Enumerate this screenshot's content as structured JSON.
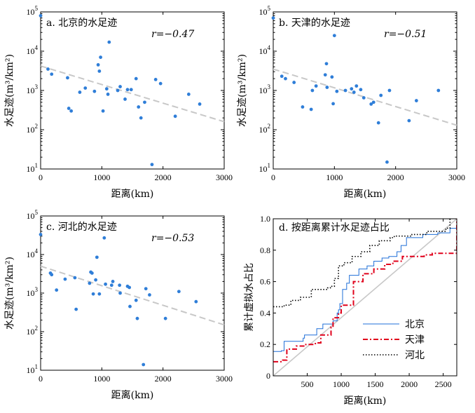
{
  "chart_data": [
    {
      "type": "scatter",
      "panel": "a. 北京的水足迹",
      "r_text": "r=−0.47",
      "xlabel": "距离(km)",
      "ylabel": "水足迹(m³/km²)",
      "xlim": [
        0,
        3000
      ],
      "ylim": [
        10,
        100000
      ],
      "yscale": "log",
      "xticks": [
        "0",
        "1000",
        "2000",
        "3000"
      ],
      "yticks": [
        "10",
        "100",
        "1000",
        "10000",
        "100000"
      ],
      "trend": {
        "x": [
          0,
          3000
        ],
        "y": [
          4200,
          160
        ]
      },
      "points": [
        {
          "x": 0,
          "y": 80000
        },
        {
          "x": 120,
          "y": 3500
        },
        {
          "x": 180,
          "y": 2600
        },
        {
          "x": 440,
          "y": 2100
        },
        {
          "x": 460,
          "y": 350
        },
        {
          "x": 500,
          "y": 300
        },
        {
          "x": 640,
          "y": 900
        },
        {
          "x": 730,
          "y": 1150
        },
        {
          "x": 880,
          "y": 950
        },
        {
          "x": 940,
          "y": 4500
        },
        {
          "x": 960,
          "y": 3100
        },
        {
          "x": 980,
          "y": 7000
        },
        {
          "x": 1020,
          "y": 300
        },
        {
          "x": 1080,
          "y": 1100
        },
        {
          "x": 1100,
          "y": 800
        },
        {
          "x": 1120,
          "y": 17000
        },
        {
          "x": 1260,
          "y": 1000
        },
        {
          "x": 1300,
          "y": 1250
        },
        {
          "x": 1380,
          "y": 600
        },
        {
          "x": 1420,
          "y": 1050
        },
        {
          "x": 1480,
          "y": 1050
        },
        {
          "x": 1560,
          "y": 2000
        },
        {
          "x": 1600,
          "y": 380
        },
        {
          "x": 1640,
          "y": 200
        },
        {
          "x": 1700,
          "y": 500
        },
        {
          "x": 1820,
          "y": 13
        },
        {
          "x": 1880,
          "y": 1900
        },
        {
          "x": 1960,
          "y": 1500
        },
        {
          "x": 2200,
          "y": 220
        },
        {
          "x": 2420,
          "y": 800
        },
        {
          "x": 2600,
          "y": 450
        }
      ]
    },
    {
      "type": "scatter",
      "panel": "b. 天津的水足迹",
      "r_text": "r=−0.51",
      "xlabel": "距离(km)",
      "ylabel": "水足迹(m³/km²)",
      "xlim": [
        0,
        3000
      ],
      "ylim": [
        10,
        100000
      ],
      "yscale": "log",
      "xticks": [
        "0",
        "1000",
        "2000",
        "3000"
      ],
      "yticks": [
        "10",
        "100",
        "1000",
        "10000",
        "100000"
      ],
      "trend": {
        "x": [
          0,
          3000
        ],
        "y": [
          3500,
          130
        ]
      },
      "points": [
        {
          "x": 0,
          "y": 70000
        },
        {
          "x": 140,
          "y": 2300
        },
        {
          "x": 200,
          "y": 2000
        },
        {
          "x": 340,
          "y": 1600
        },
        {
          "x": 480,
          "y": 380
        },
        {
          "x": 620,
          "y": 330
        },
        {
          "x": 640,
          "y": 1000
        },
        {
          "x": 700,
          "y": 1300
        },
        {
          "x": 850,
          "y": 2500
        },
        {
          "x": 870,
          "y": 4800
        },
        {
          "x": 880,
          "y": 1200
        },
        {
          "x": 960,
          "y": 2200
        },
        {
          "x": 980,
          "y": 460
        },
        {
          "x": 1000,
          "y": 25000
        },
        {
          "x": 1040,
          "y": 950
        },
        {
          "x": 1180,
          "y": 1000
        },
        {
          "x": 1280,
          "y": 1100
        },
        {
          "x": 1320,
          "y": 900
        },
        {
          "x": 1360,
          "y": 1300
        },
        {
          "x": 1430,
          "y": 1050
        },
        {
          "x": 1480,
          "y": 650
        },
        {
          "x": 1600,
          "y": 450
        },
        {
          "x": 1640,
          "y": 500
        },
        {
          "x": 1720,
          "y": 150
        },
        {
          "x": 1760,
          "y": 750
        },
        {
          "x": 1860,
          "y": 15
        },
        {
          "x": 1900,
          "y": 1000
        },
        {
          "x": 2220,
          "y": 170
        },
        {
          "x": 2340,
          "y": 550
        },
        {
          "x": 2700,
          "y": 1000
        }
      ]
    },
    {
      "type": "scatter",
      "panel": "c. 河北的水足迹",
      "r_text": "r=−0.53",
      "xlabel": "距离(km)",
      "ylabel": "水足迹(m³/km²)",
      "xlim": [
        0,
        3000
      ],
      "ylim": [
        10,
        100000
      ],
      "yscale": "log",
      "xticks": [
        "0",
        "1000",
        "2000",
        "3000"
      ],
      "yticks": [
        "10",
        "100",
        "1000",
        "10000",
        "100000"
      ],
      "trend": {
        "x": [
          0,
          3000
        ],
        "y": [
          5000,
          150
        ]
      },
      "points": [
        {
          "x": 0,
          "y": 33000
        },
        {
          "x": 160,
          "y": 3300
        },
        {
          "x": 180,
          "y": 3000
        },
        {
          "x": 260,
          "y": 1200
        },
        {
          "x": 400,
          "y": 2300
        },
        {
          "x": 560,
          "y": 2500
        },
        {
          "x": 580,
          "y": 380
        },
        {
          "x": 800,
          "y": 1800
        },
        {
          "x": 820,
          "y": 3500
        },
        {
          "x": 840,
          "y": 3300
        },
        {
          "x": 860,
          "y": 950
        },
        {
          "x": 900,
          "y": 2200
        },
        {
          "x": 920,
          "y": 8500
        },
        {
          "x": 960,
          "y": 950
        },
        {
          "x": 1040,
          "y": 27000
        },
        {
          "x": 1060,
          "y": 1700
        },
        {
          "x": 1160,
          "y": 1600
        },
        {
          "x": 1180,
          "y": 2000
        },
        {
          "x": 1290,
          "y": 1600
        },
        {
          "x": 1300,
          "y": 1000
        },
        {
          "x": 1420,
          "y": 1500
        },
        {
          "x": 1450,
          "y": 1400
        },
        {
          "x": 1460,
          "y": 450
        },
        {
          "x": 1560,
          "y": 650
        },
        {
          "x": 1580,
          "y": 220
        },
        {
          "x": 1680,
          "y": 14
        },
        {
          "x": 1720,
          "y": 1300
        },
        {
          "x": 1780,
          "y": 900
        },
        {
          "x": 2040,
          "y": 220
        },
        {
          "x": 2260,
          "y": 1100
        },
        {
          "x": 2540,
          "y": 600
        }
      ]
    },
    {
      "type": "line",
      "panel": "d. 按距离累计水足迹占比",
      "xlabel": "距离(km)",
      "ylabel": "累计虚拟水占比",
      "xlim": [
        0,
        2700
      ],
      "ylim": [
        0,
        1
      ],
      "xticks": [
        "500",
        "1000",
        "1500",
        "2000",
        "2500"
      ],
      "yticks": [
        "0",
        "0.2",
        "0.4",
        "0.6",
        "0.8",
        "1.0"
      ],
      "legend_position": "center-right",
      "series": [
        {
          "name": "北京",
          "color": "#1f6fd8",
          "style": "solid",
          "x": [
            0,
            120,
            160,
            440,
            460,
            640,
            730,
            880,
            940,
            960,
            980,
            1020,
            1080,
            1120,
            1260,
            1380,
            1480,
            1600,
            1700,
            1820,
            1880,
            1960,
            2200,
            2420,
            2600,
            2700
          ],
          "y": [
            0.155,
            0.16,
            0.22,
            0.24,
            0.26,
            0.3,
            0.33,
            0.35,
            0.4,
            0.42,
            0.46,
            0.55,
            0.59,
            0.64,
            0.68,
            0.7,
            0.73,
            0.75,
            0.76,
            0.79,
            0.83,
            0.88,
            0.9,
            0.91,
            0.94,
            1.0
          ]
        },
        {
          "name": "天津",
          "color": "#e0001b",
          "style": "dashdot",
          "x": [
            0,
            140,
            200,
            340,
            480,
            620,
            700,
            850,
            880,
            960,
            1000,
            1180,
            1320,
            1480,
            1640,
            1760,
            1900,
            2220,
            2340,
            2700
          ],
          "y": [
            0.09,
            0.1,
            0.17,
            0.19,
            0.2,
            0.21,
            0.26,
            0.31,
            0.37,
            0.4,
            0.45,
            0.6,
            0.65,
            0.68,
            0.71,
            0.73,
            0.76,
            0.77,
            0.78,
            1.0
          ]
        },
        {
          "name": "河北",
          "color": "#000000",
          "style": "dotted",
          "x": [
            0,
            160,
            260,
            400,
            560,
            800,
            840,
            900,
            960,
            1040,
            1160,
            1290,
            1420,
            1560,
            1720,
            1780,
            2040,
            2260,
            2540,
            2600
          ],
          "y": [
            0.44,
            0.45,
            0.48,
            0.5,
            0.55,
            0.56,
            0.57,
            0.62,
            0.7,
            0.72,
            0.76,
            0.79,
            0.83,
            0.86,
            0.88,
            0.89,
            0.9,
            0.92,
            0.94,
            1.0
          ]
        }
      ],
      "reference": {
        "x": [
          0,
          2700
        ],
        "y": [
          0,
          1.0
        ],
        "color": "#c8c8c8"
      }
    }
  ]
}
